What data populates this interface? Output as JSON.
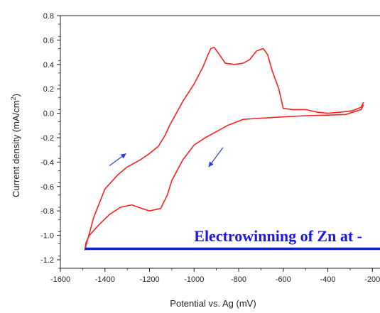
{
  "chart_data": {
    "type": "line",
    "title": "",
    "xlabel": "Potential vs. Ag (mV)",
    "ylabel": "Current density (mA/cm",
    "ylabel_sup": "2",
    "ylabel_tail": ")",
    "xlim": [
      -1600,
      -150
    ],
    "ylim": [
      -1.27,
      0.8
    ],
    "x_ticks": [
      -1600,
      -1400,
      -1200,
      -1000,
      -800,
      -600,
      -400,
      -200
    ],
    "y_ticks": [
      0.8,
      0.6,
      0.4,
      0.2,
      0.0,
      -0.2,
      -0.4,
      -0.6,
      -0.8,
      -1.0,
      -1.2
    ],
    "x_tick_labels": [
      "-1600",
      "-1400",
      "-1200",
      "-1000",
      "-800",
      "-600",
      "-400",
      "-200"
    ],
    "y_tick_labels": [
      "0.8",
      "0.6",
      "0.4",
      "0.2",
      "0.0",
      "-0.2",
      "-0.4",
      "-0.6",
      "-0.8",
      "-1.0",
      "-1.2"
    ],
    "series": [
      {
        "color": "#ff1f1f",
        "x": [
          -240,
          -250,
          -320,
          -400,
          -500,
          -600,
          -700,
          -780,
          -850,
          -900,
          -950,
          -1000,
          -1050,
          -1100,
          -1120,
          -1150,
          -1200,
          -1250,
          -1280,
          -1330,
          -1380,
          -1430,
          -1470,
          -1485,
          -1490,
          -1480,
          -1450,
          -1400,
          -1340,
          -1300,
          -1240,
          -1200,
          -1160,
          -1130,
          -1110,
          -1080,
          -1050,
          -1000,
          -960,
          -940,
          -925,
          -910,
          -890,
          -860,
          -820,
          -780,
          -750,
          -720,
          -690,
          -670,
          -650,
          -620,
          -600,
          -560,
          -500,
          -450,
          -400,
          -340,
          -290,
          -250,
          -240
        ],
        "y": [
          0.07,
          0.03,
          -0.01,
          -0.015,
          -0.02,
          -0.03,
          -0.04,
          -0.05,
          -0.1,
          -0.15,
          -0.2,
          -0.26,
          -0.38,
          -0.55,
          -0.67,
          -0.78,
          -0.8,
          -0.77,
          -0.75,
          -0.77,
          -0.83,
          -0.92,
          -1.0,
          -1.06,
          -1.12,
          -1.05,
          -0.85,
          -0.62,
          -0.5,
          -0.44,
          -0.38,
          -0.33,
          -0.27,
          -0.18,
          -0.1,
          0.0,
          0.1,
          0.24,
          0.38,
          0.47,
          0.53,
          0.54,
          0.49,
          0.41,
          0.4,
          0.41,
          0.44,
          0.51,
          0.53,
          0.48,
          0.35,
          0.2,
          0.04,
          0.03,
          0.03,
          0.01,
          0.0,
          0.01,
          0.02,
          0.05,
          0.09
        ]
      }
    ],
    "arrows": [
      {
        "color": "#2a3fe0",
        "from": [
          -1380,
          -0.43
        ],
        "to": [
          -1305,
          -0.33
        ]
      },
      {
        "color": "#2a3fe0",
        "from": [
          -870,
          -0.28
        ],
        "to": [
          -935,
          -0.44
        ]
      }
    ],
    "baseline": {
      "color": "#0a1ee6",
      "y": -1.11,
      "x_start": -1490
    },
    "annotation": {
      "text": "Electrowinning of Zn at -",
      "color": "#1a1ae6",
      "x": -1000,
      "y": -1.05
    }
  }
}
